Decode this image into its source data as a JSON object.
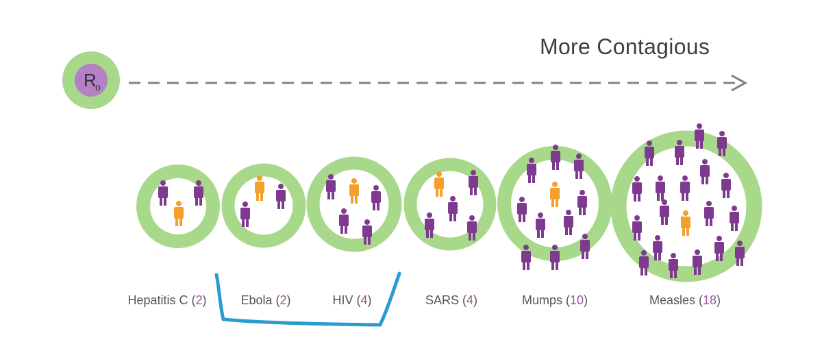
{
  "header": {
    "title": "More Contagious",
    "r0_letter": "R",
    "r0_subscript": "o"
  },
  "colors": {
    "ring": "#a8d88a",
    "r0_fill": "#b381c4",
    "person": "#7e3a8e",
    "infected_person": "#f5a02a",
    "arrow": "#8a7f7c",
    "number": "#9b4f9f",
    "marker": "#2b9bd0"
  },
  "diseases": [
    {
      "name": "Hepatitis C",
      "r0": "2"
    },
    {
      "name": "Ebola",
      "r0": "2"
    },
    {
      "name": "HIV",
      "r0": "4"
    },
    {
      "name": "SARS",
      "r0": "4"
    },
    {
      "name": "Mumps",
      "r0": "10"
    },
    {
      "name": "Measles",
      "r0": "18"
    }
  ],
  "annotation": {
    "shape": "bracket",
    "color": "#2b9bd0",
    "groups": [
      "Ebola",
      "HIV"
    ]
  },
  "icons": {
    "person": "person-icon",
    "infected": "infected-person-icon",
    "arrow": "arrow-right-icon"
  }
}
